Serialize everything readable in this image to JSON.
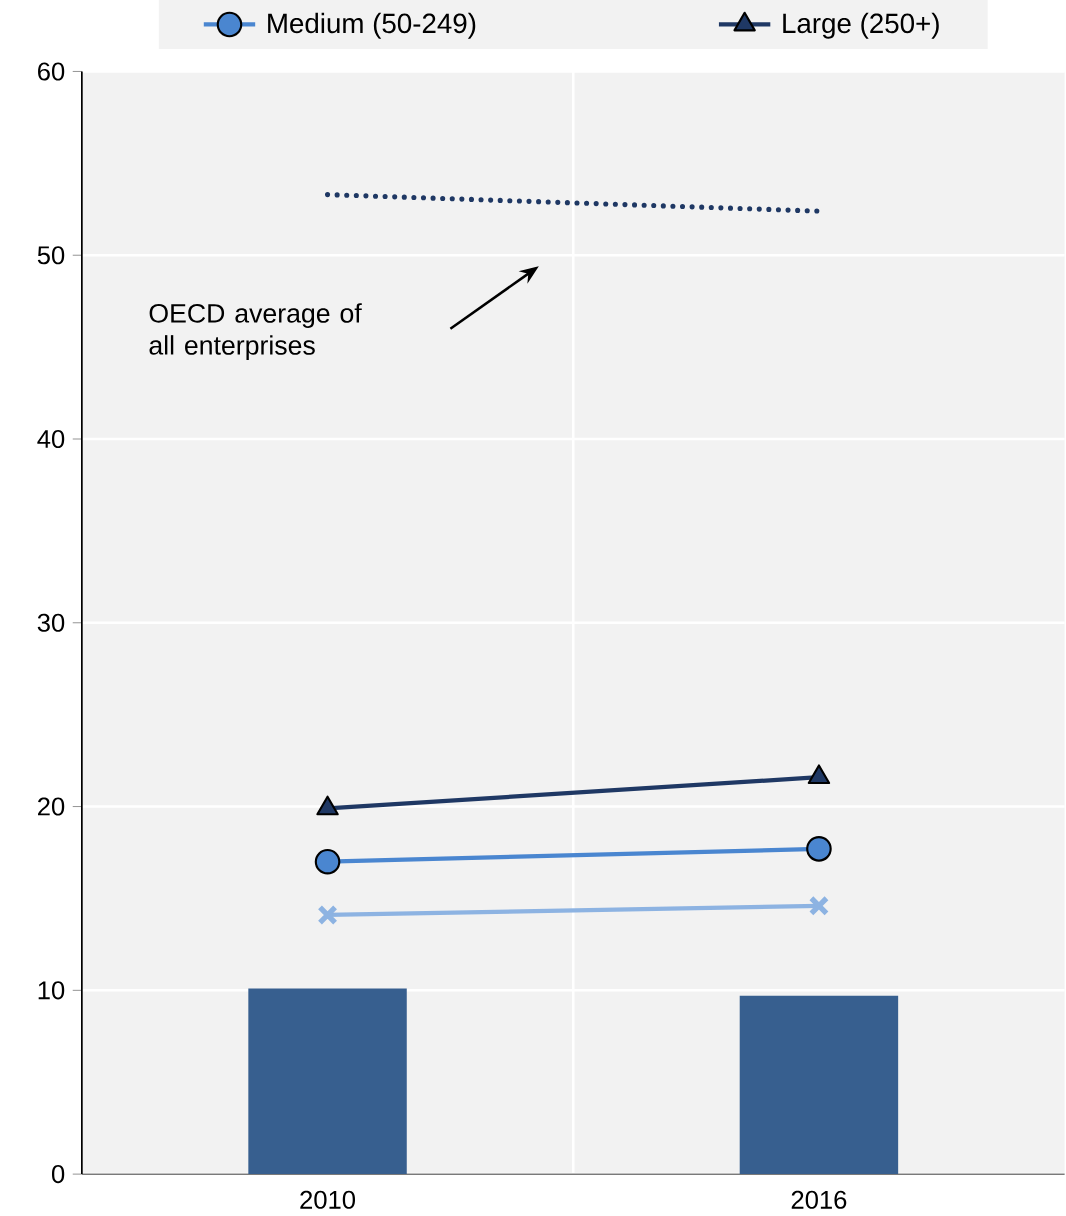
{
  "chart_data": {
    "type": "bar",
    "categories": [
      "2010",
      "2016"
    ],
    "series": [
      {
        "type": "bar",
        "color": "#375f8f",
        "values": [
          10.1,
          9.7
        ]
      },
      {
        "type": "line",
        "name": "Medium (50-249)",
        "color": "#4a86d0",
        "marker": "circle",
        "values": [
          17.0,
          17.7
        ]
      },
      {
        "type": "line",
        "name": "Large (250+)",
        "color": "#1f3864",
        "marker": "triangle",
        "values": [
          19.9,
          21.6
        ]
      },
      {
        "type": "line",
        "color": "#8db3e2",
        "marker": "cross",
        "values": [
          14.1,
          14.6
        ]
      },
      {
        "type": "line",
        "color": "#1f3864",
        "marker": "none",
        "line_style": "dotted",
        "values": [
          53.3,
          52.4
        ]
      }
    ],
    "annotations": [
      "OECD average of all enterprises"
    ],
    "ylim": [
      0,
      60
    ],
    "yticks": [
      0,
      10,
      20,
      30,
      40,
      50,
      60
    ],
    "grid": true,
    "legend": "top"
  }
}
